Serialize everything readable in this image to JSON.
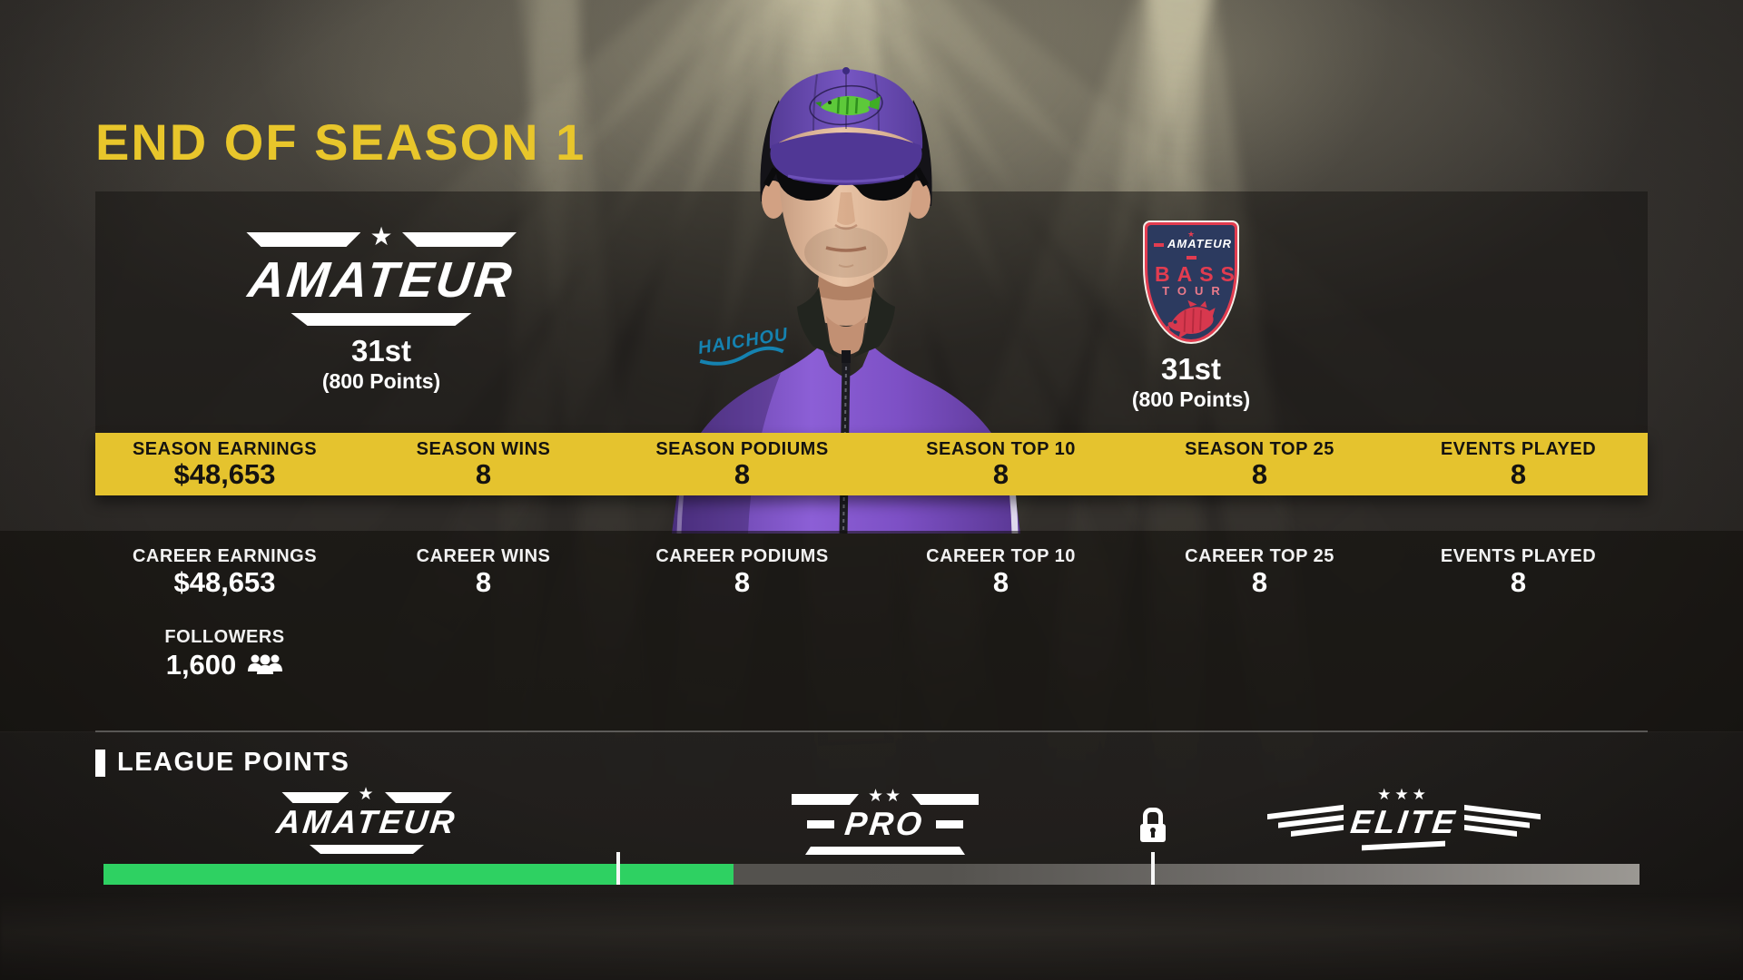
{
  "screen": {
    "title": "END OF SEASON 1"
  },
  "league_result": {
    "league": "AMATEUR",
    "rank": "31st",
    "points": "(800 Points)"
  },
  "tour_badge": {
    "top": "AMATEUR",
    "middle": "BASS",
    "bottom": "TOUR",
    "rank": "31st",
    "points": "(800 Points)"
  },
  "season_stats": [
    {
      "label": "SEASON EARNINGS",
      "value": "$48,653"
    },
    {
      "label": "SEASON WINS",
      "value": "8"
    },
    {
      "label": "SEASON PODIUMS",
      "value": "8"
    },
    {
      "label": "SEASON TOP 10",
      "value": "8"
    },
    {
      "label": "SEASON TOP 25",
      "value": "8"
    },
    {
      "label": "EVENTS PLAYED",
      "value": "8"
    }
  ],
  "career_stats": [
    {
      "label": "CAREER EARNINGS",
      "value": "$48,653"
    },
    {
      "label": "CAREER WINS",
      "value": "8"
    },
    {
      "label": "CAREER PODIUMS",
      "value": "8"
    },
    {
      "label": "CAREER TOP 10",
      "value": "8"
    },
    {
      "label": "CAREER TOP 25",
      "value": "8"
    },
    {
      "label": "EVENTS PLAYED",
      "value": "8"
    }
  ],
  "followers": {
    "label": "FOLLOWERS",
    "value": "1,600",
    "icon": "followers-group-icon"
  },
  "league_points": {
    "heading": "LEAGUE POINTS",
    "tiers": [
      {
        "name": "AMATEUR",
        "stars": 1,
        "locked": false
      },
      {
        "name": "PRO",
        "stars": 2,
        "locked": false
      },
      {
        "name": "ELITE",
        "stars": 3,
        "locked": true
      }
    ],
    "progress": {
      "percent": 41,
      "tick1_percent": 33.5,
      "tick2_percent": 68.3,
      "lock_icon": "lock-icon"
    }
  },
  "avatar": {
    "jersey_brand": "HAICHOU"
  },
  "colors": {
    "accent_yellow": "#e5c32e",
    "title_yellow": "#e8c62b",
    "progress_green": "#2ed162",
    "badge_red": "#e23c50",
    "badge_navy": "#2c3a5f",
    "jacket_purple": "#7d50c5"
  }
}
